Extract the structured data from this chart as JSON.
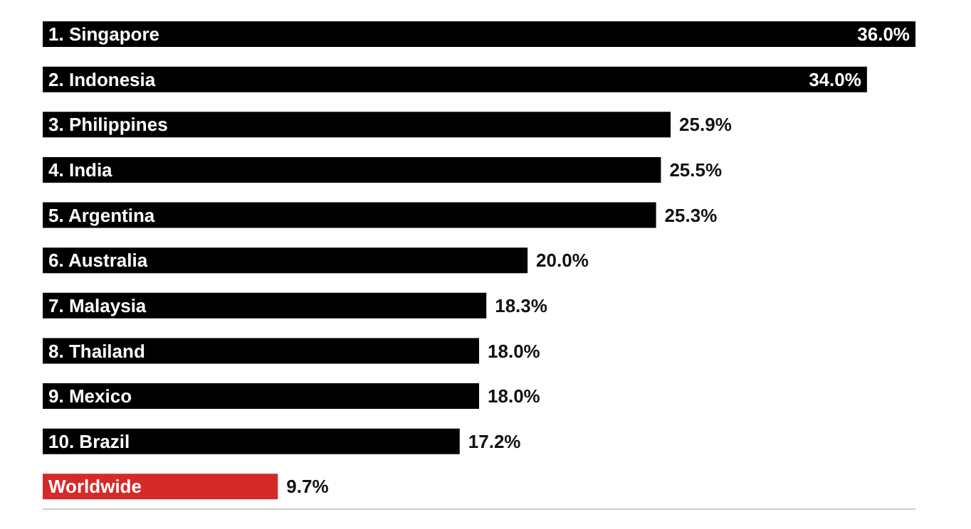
{
  "chart_data": {
    "type": "bar",
    "orientation": "horizontal",
    "categories": [
      "1. Singapore",
      "2. Indonesia",
      "3. Philippines",
      "4. India",
      "5. Argentina",
      "6. Australia",
      "7. Malaysia",
      "8. Thailand",
      "9. Mexico",
      "10. Brazil",
      "Worldwide"
    ],
    "values": [
      36.0,
      34.0,
      25.9,
      25.5,
      25.3,
      20.0,
      18.3,
      18.0,
      18.0,
      17.2,
      9.7
    ],
    "colors": [
      "#000000",
      "#000000",
      "#000000",
      "#000000",
      "#000000",
      "#000000",
      "#000000",
      "#000000",
      "#000000",
      "#000000",
      "#d42a2a"
    ],
    "value_labels": [
      "36.0%",
      "34.0%",
      "25.9%",
      "25.5%",
      "25.3%",
      "20.0%",
      "18.3%",
      "18.0%",
      "18.0%",
      "17.2%",
      "9.7%"
    ]
  }
}
